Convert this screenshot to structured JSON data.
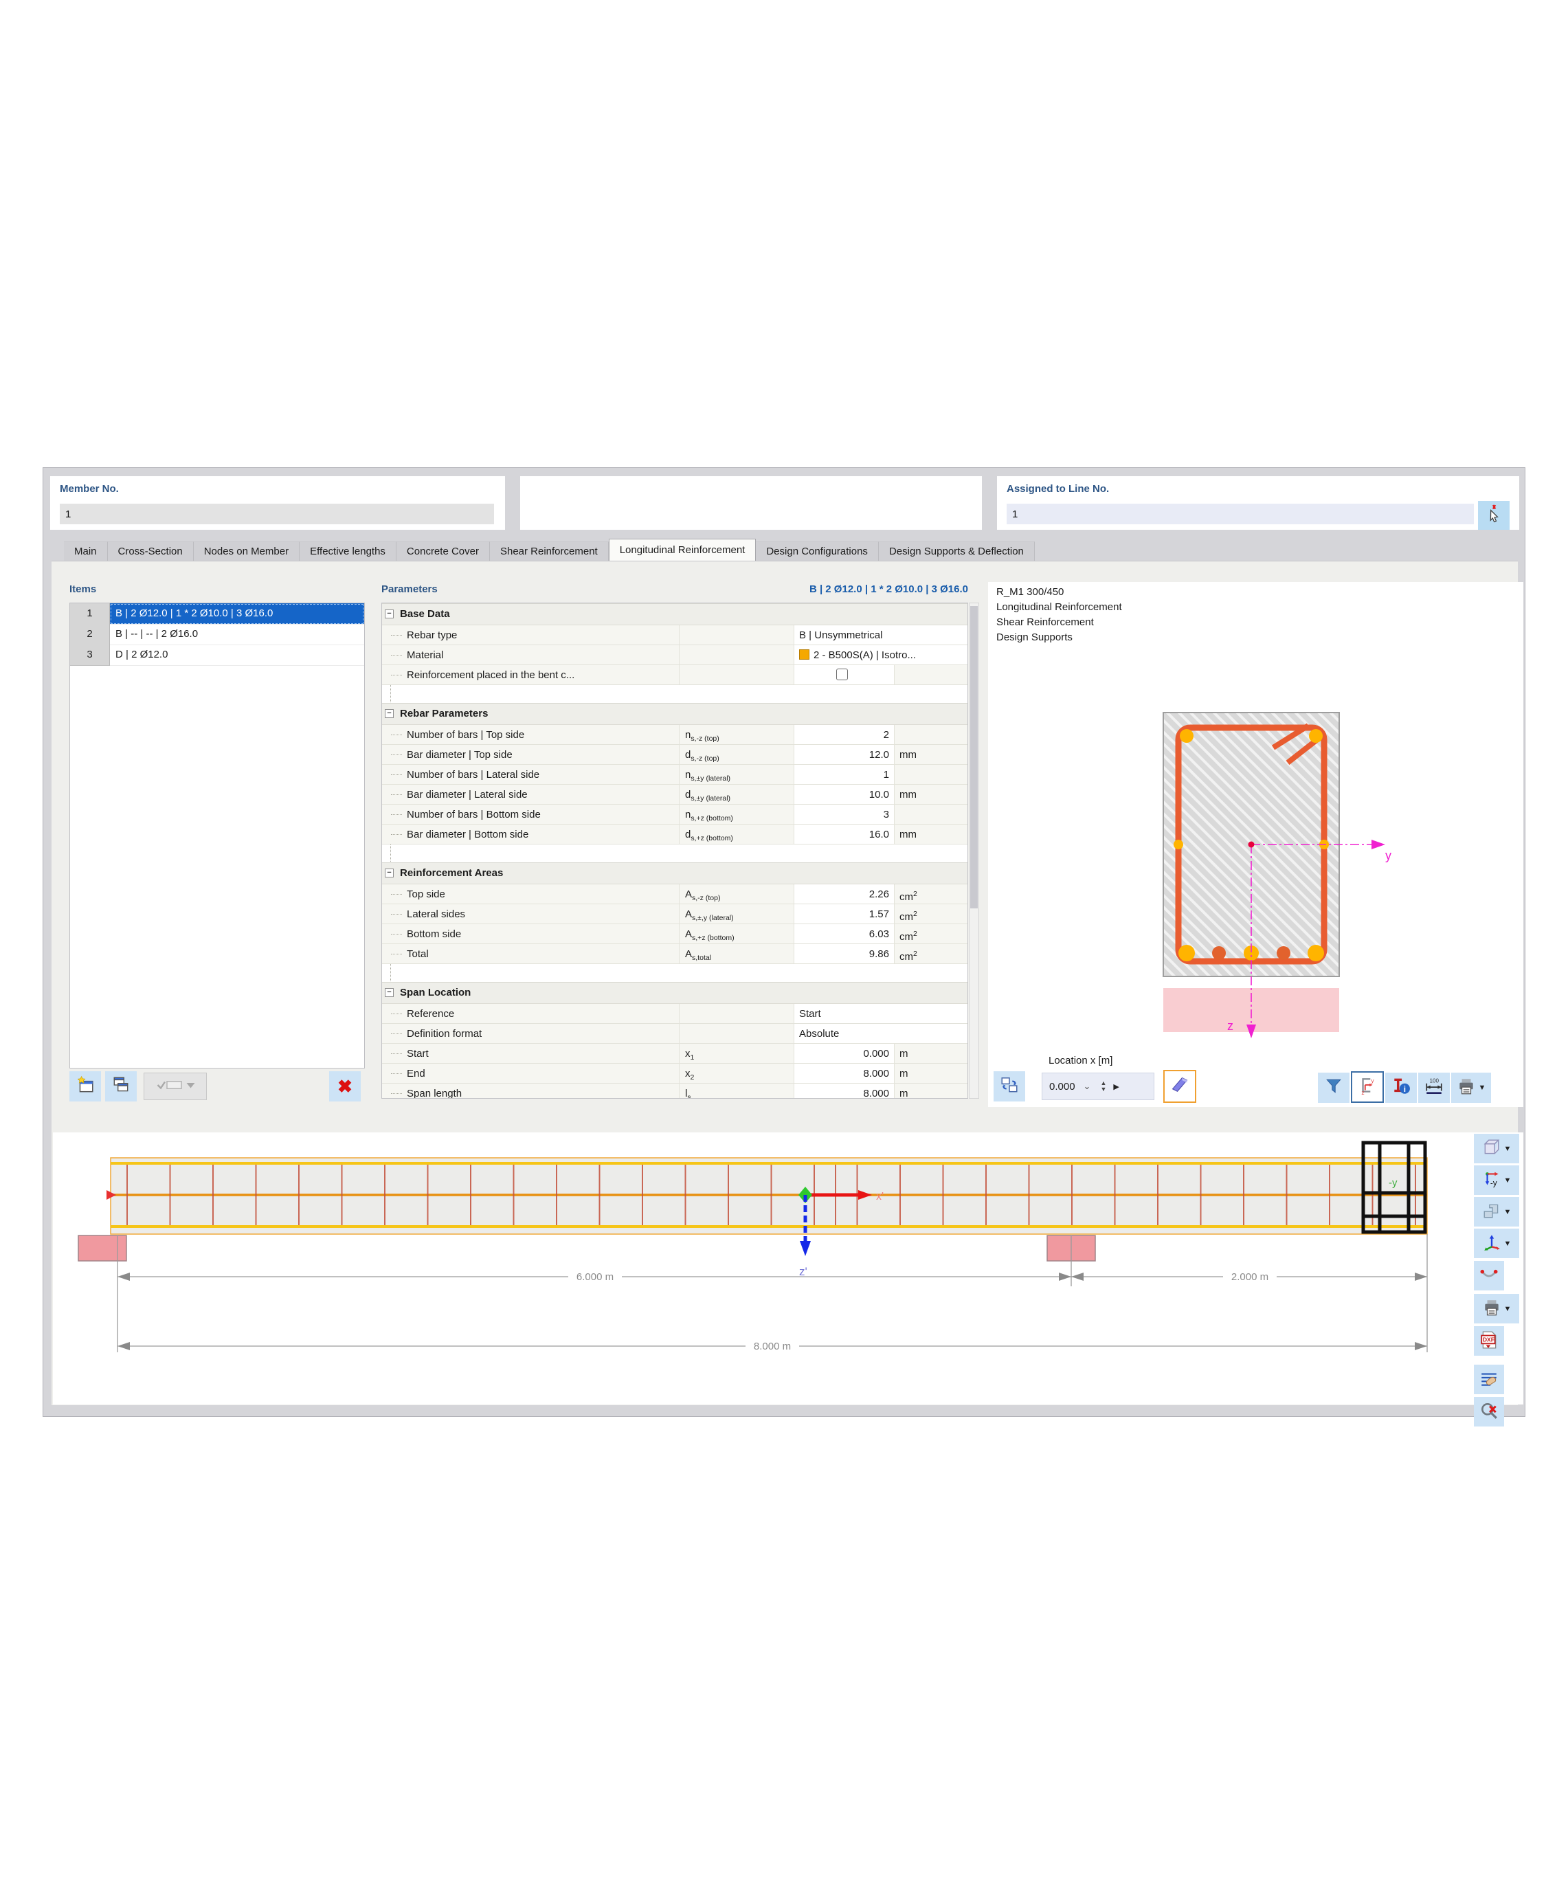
{
  "header": {
    "member": {
      "label": "Member No.",
      "value": "1"
    },
    "assigned": {
      "label": "Assigned to Line No.",
      "value": "1"
    }
  },
  "tabs": {
    "active_index": 6,
    "items": [
      "Main",
      "Cross-Section",
      "Nodes on Member",
      "Effective lengths",
      "Concrete Cover",
      "Shear Reinforcement",
      "Longitudinal Reinforcement",
      "Design Configurations",
      "Design Supports & Deflection"
    ]
  },
  "items_panel": {
    "title": "Items",
    "selected_index": 0,
    "rows": [
      {
        "no": "1",
        "label": "B | 2 Ø12.0 | 1 * 2 Ø10.0 | 3 Ø16.0"
      },
      {
        "no": "2",
        "label": "B | -- | -- | 2 Ø16.0"
      },
      {
        "no": "3",
        "label": "D | 2 Ø12.0"
      }
    ]
  },
  "parameters": {
    "title": "Parameters",
    "selected_value": "B | 2 Ø12.0 | 1 * 2 Ø10.0 | 3 Ø16.0",
    "sections": [
      {
        "title": "Base Data",
        "rows": [
          {
            "label": "Rebar type",
            "value": "B | Unsymmetrical",
            "text_row": true
          },
          {
            "label": "Material",
            "value": "2 - B500S(A) | Isotro...",
            "text_row": true,
            "swatch": "#f5a800"
          },
          {
            "label": "Reinforcement placed in the bent c...",
            "checkbox": true
          }
        ]
      },
      {
        "title": "Rebar Parameters",
        "rows": [
          {
            "label": "Number of bars | Top side",
            "sym_b": "n",
            "sym_s": "s,-z (top)",
            "value": "2",
            "unit": ""
          },
          {
            "label": "Bar diameter | Top side",
            "sym_b": "d",
            "sym_s": "s,-z (top)",
            "value": "12.0",
            "unit": "mm"
          },
          {
            "label": "Number of bars | Lateral side",
            "sym_b": "n",
            "sym_s": "s,±y (lateral)",
            "value": "1",
            "unit": ""
          },
          {
            "label": "Bar diameter | Lateral side",
            "sym_b": "d",
            "sym_s": "s,±y (lateral)",
            "value": "10.0",
            "unit": "mm"
          },
          {
            "label": "Number of bars | Bottom side",
            "sym_b": "n",
            "sym_s": "s,+z (bottom)",
            "value": "3",
            "unit": ""
          },
          {
            "label": "Bar diameter | Bottom side",
            "sym_b": "d",
            "sym_s": "s,+z (bottom)",
            "value": "16.0",
            "unit": "mm"
          }
        ]
      },
      {
        "title": "Reinforcement Areas",
        "rows": [
          {
            "label": "Top side",
            "sym_b": "A",
            "sym_s": "s,-z (top)",
            "value": "2.26",
            "unit": "cm",
            "unit_sup": "2"
          },
          {
            "label": "Lateral sides",
            "sym_b": "A",
            "sym_s": "s,±,y (lateral)",
            "value": "1.57",
            "unit": "cm",
            "unit_sup": "2"
          },
          {
            "label": "Bottom side",
            "sym_b": "A",
            "sym_s": "s,+z (bottom)",
            "value": "6.03",
            "unit": "cm",
            "unit_sup": "2"
          },
          {
            "label": "Total",
            "sym_b": "A",
            "sym_s": "s,total",
            "value": "9.86",
            "unit": "cm",
            "unit_sup": "2"
          }
        ]
      },
      {
        "title": "Span Location",
        "rows": [
          {
            "label": "Reference",
            "value": "Start",
            "text_row": true
          },
          {
            "label": "Definition format",
            "value": "Absolute",
            "text_row": true
          },
          {
            "label": "Start",
            "sym_b": "x",
            "sym_s": "1",
            "value": "0.000",
            "unit": "m"
          },
          {
            "label": "End",
            "sym_b": "x",
            "sym_s": "2",
            "value": "8.000",
            "unit": "m"
          },
          {
            "label": "Span length",
            "sym_b": "l",
            "sym_s": "s",
            "value": "8.000",
            "unit": "m"
          }
        ]
      }
    ]
  },
  "preview": {
    "info_lines": [
      "R_M1 300/450",
      "Longitudinal Reinforcement",
      "Shear Reinforcement",
      "Design Supports"
    ],
    "axis_y": "y",
    "axis_z": "z",
    "location_label": "Location x [m]",
    "location_value": "0.000",
    "toolbar": [
      {
        "name": "filter",
        "selected": false,
        "dropdown": false
      },
      {
        "name": "section-view",
        "selected": true,
        "dropdown": false
      },
      {
        "name": "member-info",
        "selected": false,
        "dropdown": false
      },
      {
        "name": "dimensions",
        "selected": false,
        "dropdown": false
      },
      {
        "name": "print",
        "selected": false,
        "dropdown": true
      }
    ]
  },
  "drawing": {
    "dim_span1": "6.000 m",
    "dim_span2": "2.000 m",
    "dim_total": "8.000 m",
    "axis_x": "x'",
    "axis_z": "z'",
    "nav_label": "-y",
    "toolbar": [
      {
        "name": "isometric-view",
        "dropdown": true
      },
      {
        "name": "view-direction-minus-y",
        "dropdown": true
      },
      {
        "name": "render-mode",
        "dropdown": true
      },
      {
        "name": "coordinate-system",
        "dropdown": true
      },
      {
        "name": "result-diagram",
        "dropdown": false
      },
      {
        "name": "print",
        "dropdown": true
      },
      {
        "name": "export-dxf",
        "dropdown": false
      },
      {
        "name": "display-settings",
        "dropdown": false
      },
      {
        "name": "zoom-reset",
        "dropdown": false
      }
    ]
  },
  "colors": {
    "accent_blue": "#1565c8",
    "title_blue": "#2d5585",
    "button_blue": "#cde3f6",
    "stirrup_orange": "#e85c30",
    "rebar_yellow": "#ffb400",
    "rebar_orange": "#e2622d",
    "support_pink": "#f0999f",
    "axis_magenta": "#f020d0",
    "beam_yellow": "#f6c518",
    "beam_orange": "#e89010",
    "dim_gray": "#8a8a8a"
  }
}
